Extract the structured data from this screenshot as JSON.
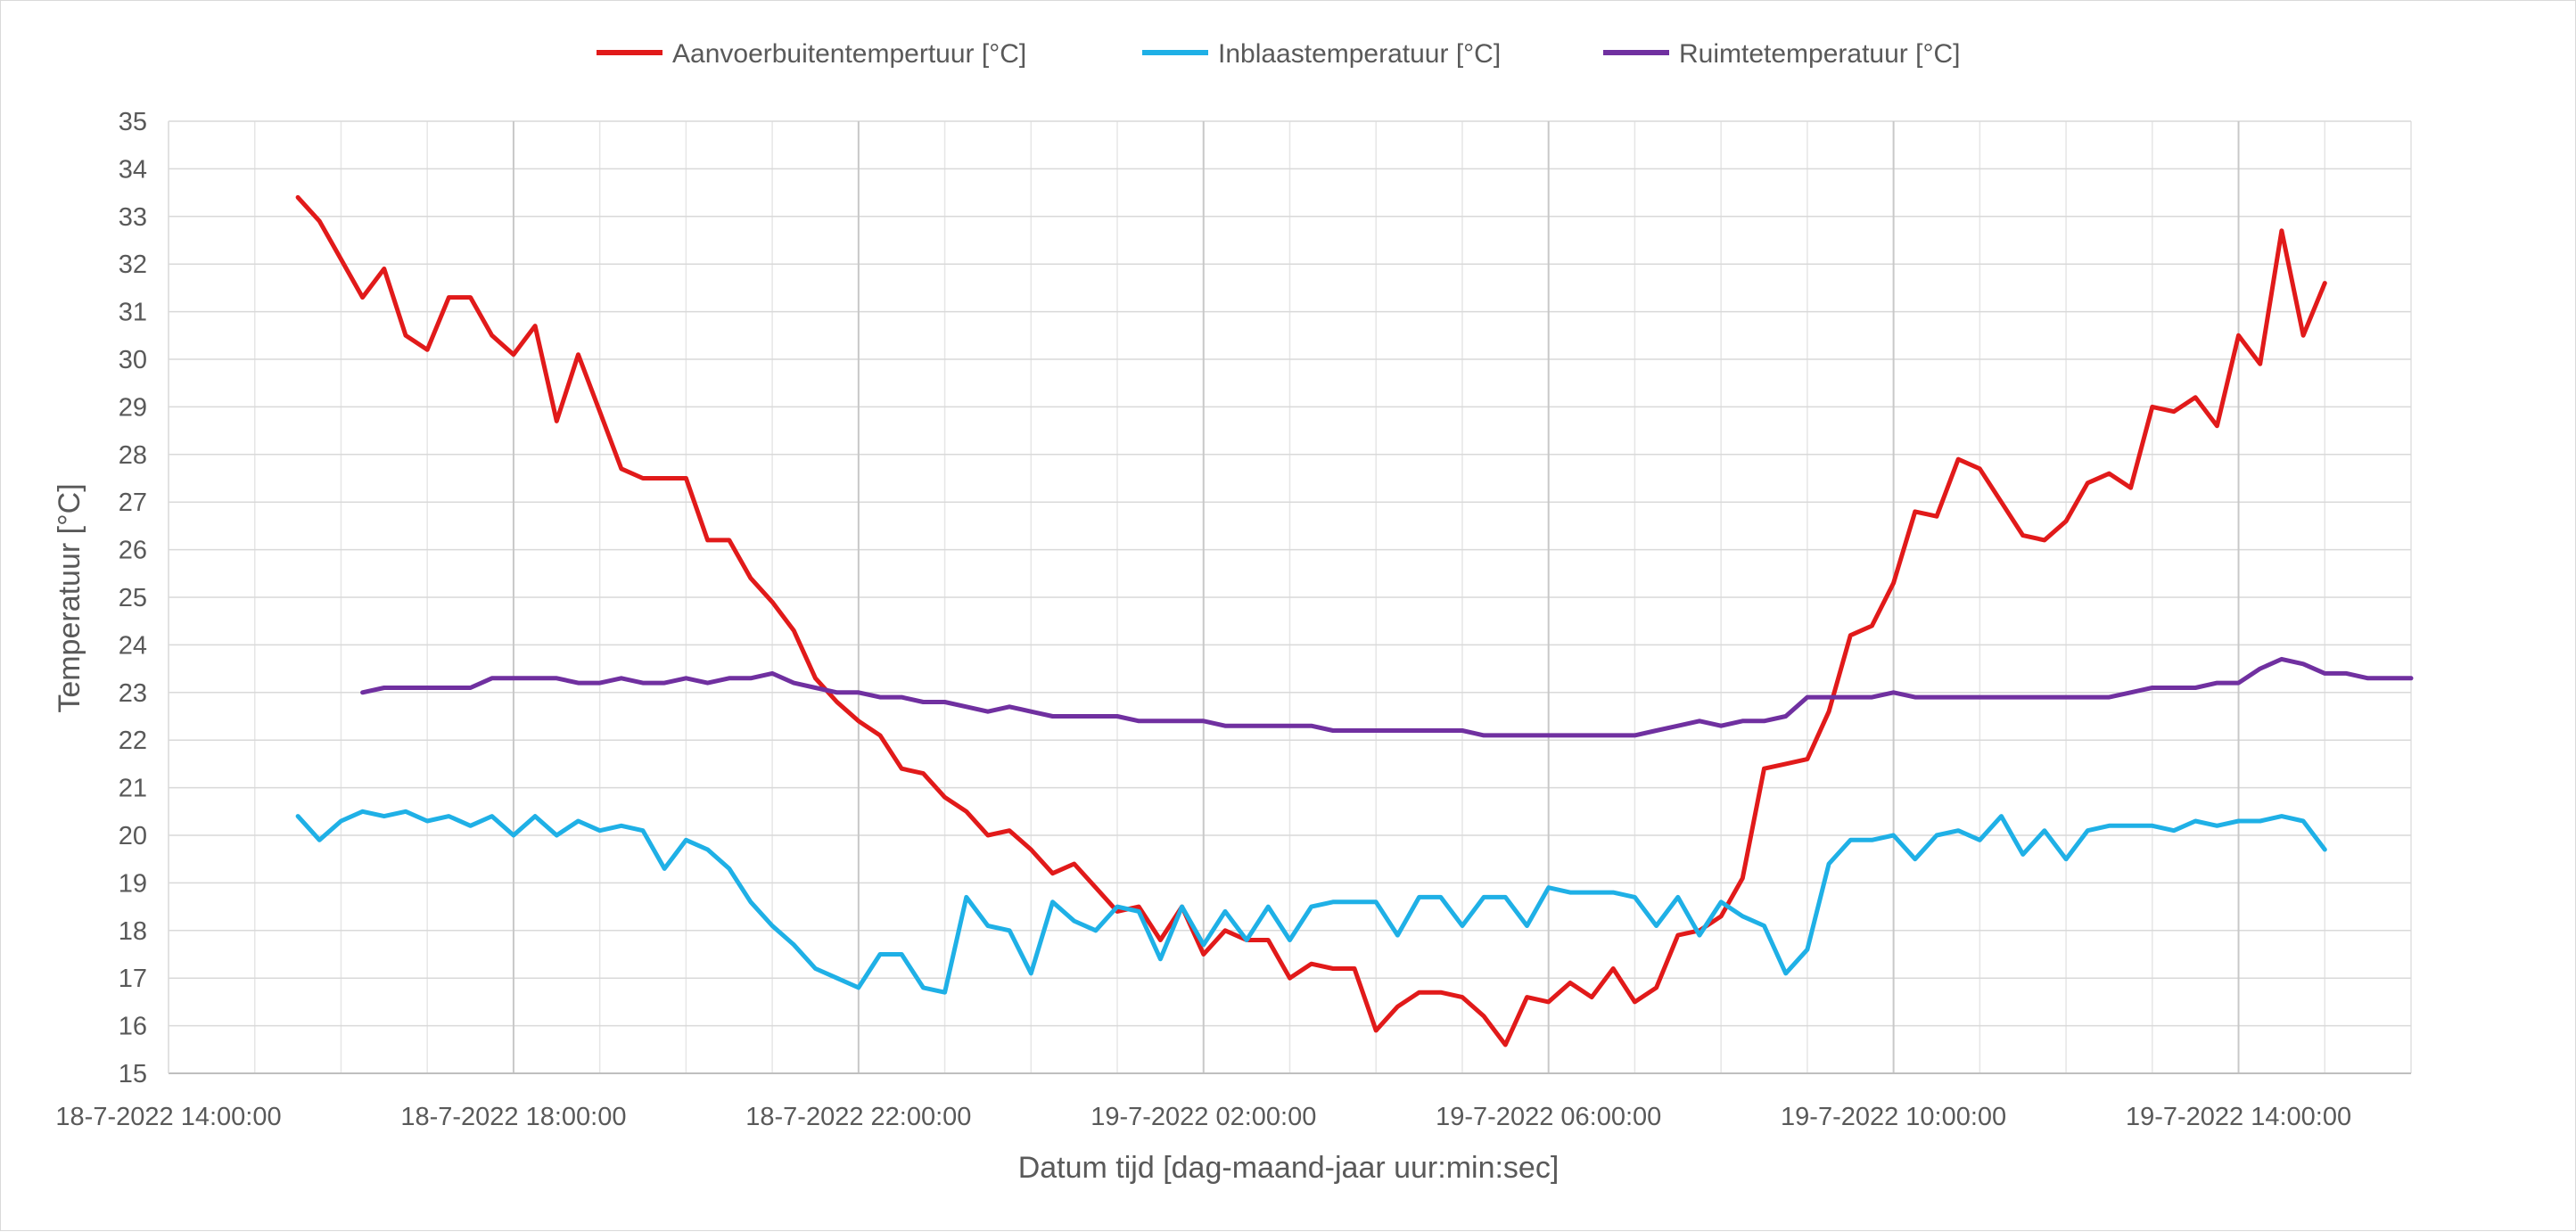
{
  "chart_data": {
    "type": "line",
    "title": "",
    "xlabel": "Datum tijd [dag-maand-jaar uur:min:sec]",
    "ylabel": "Temperatuur [°C]",
    "ylim": [
      15,
      35
    ],
    "yticks": [
      15,
      16,
      17,
      18,
      19,
      20,
      21,
      22,
      23,
      24,
      25,
      26,
      27,
      28,
      29,
      30,
      31,
      32,
      33,
      34,
      35
    ],
    "x_axis": {
      "type": "datetime",
      "start": "18-7-2022 14:00:00",
      "end": "19-7-2022 16:00:00",
      "major_tick_labels": [
        "18-7-2022 14:00:00",
        "18-7-2022 18:00:00",
        "18-7-2022 22:00:00",
        "19-7-2022 02:00:00",
        "19-7-2022 06:00:00",
        "19-7-2022 10:00:00",
        "19-7-2022 14:00:00"
      ],
      "minor_grid_minutes": 60,
      "major_grid_minutes": 240
    },
    "grid": true,
    "legend": "top-center",
    "series": [
      {
        "name": "Aanvoerbuitentempertuur [°C]",
        "color": "#e11a1a",
        "x": [
          "18-7-2022 15:30:00",
          "18-7-2022 15:45:00",
          "18-7-2022 16:00:00",
          "18-7-2022 16:15:00",
          "18-7-2022 16:30:00",
          "18-7-2022 16:45:00",
          "18-7-2022 17:00:00",
          "18-7-2022 17:15:00",
          "18-7-2022 17:30:00",
          "18-7-2022 17:45:00",
          "18-7-2022 18:00:00",
          "18-7-2022 18:15:00",
          "18-7-2022 18:30:00",
          "18-7-2022 18:45:00",
          "18-7-2022 19:00:00",
          "18-7-2022 19:15:00",
          "18-7-2022 19:30:00",
          "18-7-2022 19:45:00",
          "18-7-2022 20:00:00",
          "18-7-2022 20:15:00",
          "18-7-2022 20:30:00",
          "18-7-2022 20:45:00",
          "18-7-2022 21:00:00",
          "18-7-2022 21:15:00",
          "18-7-2022 21:30:00",
          "18-7-2022 21:45:00",
          "18-7-2022 22:00:00",
          "18-7-2022 22:15:00",
          "18-7-2022 22:30:00",
          "18-7-2022 22:45:00",
          "18-7-2022 23:00:00",
          "18-7-2022 23:15:00",
          "18-7-2022 23:30:00",
          "18-7-2022 23:45:00",
          "19-7-2022 00:00:00",
          "19-7-2022 00:15:00",
          "19-7-2022 00:30:00",
          "19-7-2022 00:45:00",
          "19-7-2022 01:00:00",
          "19-7-2022 01:15:00",
          "19-7-2022 01:30:00",
          "19-7-2022 01:45:00",
          "19-7-2022 02:00:00",
          "19-7-2022 02:15:00",
          "19-7-2022 02:30:00",
          "19-7-2022 02:45:00",
          "19-7-2022 03:00:00",
          "19-7-2022 03:15:00",
          "19-7-2022 03:30:00",
          "19-7-2022 03:45:00",
          "19-7-2022 04:00:00",
          "19-7-2022 04:15:00",
          "19-7-2022 04:30:00",
          "19-7-2022 04:45:00",
          "19-7-2022 05:00:00",
          "19-7-2022 05:15:00",
          "19-7-2022 05:30:00",
          "19-7-2022 05:45:00",
          "19-7-2022 06:00:00",
          "19-7-2022 06:15:00",
          "19-7-2022 06:30:00",
          "19-7-2022 06:45:00",
          "19-7-2022 07:00:00",
          "19-7-2022 07:15:00",
          "19-7-2022 07:30:00",
          "19-7-2022 07:45:00",
          "19-7-2022 08:00:00",
          "19-7-2022 08:15:00",
          "19-7-2022 08:30:00",
          "19-7-2022 08:45:00",
          "19-7-2022 09:00:00",
          "19-7-2022 09:15:00",
          "19-7-2022 09:30:00",
          "19-7-2022 09:45:00",
          "19-7-2022 10:00:00",
          "19-7-2022 10:15:00",
          "19-7-2022 10:30:00",
          "19-7-2022 10:45:00",
          "19-7-2022 11:00:00",
          "19-7-2022 11:15:00",
          "19-7-2022 11:30:00",
          "19-7-2022 11:45:00",
          "19-7-2022 12:00:00",
          "19-7-2022 12:15:00",
          "19-7-2022 12:30:00",
          "19-7-2022 12:45:00",
          "19-7-2022 13:00:00",
          "19-7-2022 13:15:00",
          "19-7-2022 13:30:00",
          "19-7-2022 13:45:00",
          "19-7-2022 14:00:00",
          "19-7-2022 14:15:00",
          "19-7-2022 14:30:00",
          "19-7-2022 14:45:00",
          "19-7-2022 15:00:00"
        ],
        "values": [
          33.4,
          32.9,
          32.1,
          31.3,
          31.9,
          30.5,
          30.2,
          31.3,
          31.3,
          30.5,
          30.1,
          30.7,
          28.7,
          30.1,
          28.9,
          27.7,
          27.5,
          27.5,
          27.5,
          26.2,
          26.2,
          25.4,
          24.9,
          24.3,
          23.3,
          22.8,
          22.4,
          22.1,
          21.4,
          21.3,
          20.8,
          20.5,
          20.0,
          20.1,
          19.7,
          19.2,
          19.4,
          18.9,
          18.4,
          18.5,
          17.8,
          18.5,
          17.5,
          18.0,
          17.8,
          17.8,
          17.0,
          17.3,
          17.2,
          17.2,
          15.9,
          16.4,
          16.7,
          16.7,
          16.6,
          16.2,
          15.6,
          16.6,
          16.5,
          16.9,
          16.6,
          17.2,
          16.5,
          16.8,
          17.9,
          18.0,
          18.3,
          19.1,
          21.4,
          21.5,
          21.6,
          22.6,
          24.2,
          24.4,
          25.3,
          26.8,
          26.7,
          27.9,
          27.7,
          27.0,
          26.3,
          26.2,
          26.6,
          27.4,
          27.6,
          27.3,
          29.0,
          28.9,
          29.2,
          28.6,
          30.5,
          29.9,
          32.7,
          30.5,
          31.6
        ]
      },
      {
        "name": "Inblaastemperatuur [°C]",
        "color": "#1fb0e6",
        "x": [
          "18-7-2022 15:30:00",
          "18-7-2022 15:45:00",
          "18-7-2022 16:00:00",
          "18-7-2022 16:15:00",
          "18-7-2022 16:30:00",
          "18-7-2022 16:45:00",
          "18-7-2022 17:00:00",
          "18-7-2022 17:15:00",
          "18-7-2022 17:30:00",
          "18-7-2022 17:45:00",
          "18-7-2022 18:00:00",
          "18-7-2022 18:15:00",
          "18-7-2022 18:30:00",
          "18-7-2022 18:45:00",
          "18-7-2022 19:00:00",
          "18-7-2022 19:15:00",
          "18-7-2022 19:30:00",
          "18-7-2022 19:45:00",
          "18-7-2022 20:00:00",
          "18-7-2022 20:15:00",
          "18-7-2022 20:30:00",
          "18-7-2022 20:45:00",
          "18-7-2022 21:00:00",
          "18-7-2022 21:15:00",
          "18-7-2022 21:30:00",
          "18-7-2022 21:45:00",
          "18-7-2022 22:00:00",
          "18-7-2022 22:15:00",
          "18-7-2022 22:30:00",
          "18-7-2022 22:45:00",
          "18-7-2022 23:00:00",
          "18-7-2022 23:15:00",
          "18-7-2022 23:30:00",
          "18-7-2022 23:45:00",
          "19-7-2022 00:00:00",
          "19-7-2022 00:15:00",
          "19-7-2022 00:30:00",
          "19-7-2022 00:45:00",
          "19-7-2022 01:00:00",
          "19-7-2022 01:15:00",
          "19-7-2022 01:30:00",
          "19-7-2022 01:45:00",
          "19-7-2022 02:00:00",
          "19-7-2022 02:15:00",
          "19-7-2022 02:30:00",
          "19-7-2022 02:45:00",
          "19-7-2022 03:00:00",
          "19-7-2022 03:15:00",
          "19-7-2022 03:30:00",
          "19-7-2022 03:45:00",
          "19-7-2022 04:00:00",
          "19-7-2022 04:15:00",
          "19-7-2022 04:30:00",
          "19-7-2022 04:45:00",
          "19-7-2022 05:00:00",
          "19-7-2022 05:15:00",
          "19-7-2022 05:30:00",
          "19-7-2022 05:45:00",
          "19-7-2022 06:00:00",
          "19-7-2022 06:15:00",
          "19-7-2022 06:30:00",
          "19-7-2022 06:45:00",
          "19-7-2022 07:00:00",
          "19-7-2022 07:15:00",
          "19-7-2022 07:30:00",
          "19-7-2022 07:45:00",
          "19-7-2022 08:00:00",
          "19-7-2022 08:15:00",
          "19-7-2022 08:30:00",
          "19-7-2022 08:45:00",
          "19-7-2022 09:00:00",
          "19-7-2022 09:15:00",
          "19-7-2022 09:30:00",
          "19-7-2022 09:45:00",
          "19-7-2022 10:00:00",
          "19-7-2022 10:15:00",
          "19-7-2022 10:30:00",
          "19-7-2022 10:45:00",
          "19-7-2022 11:00:00",
          "19-7-2022 11:15:00",
          "19-7-2022 11:30:00",
          "19-7-2022 11:45:00",
          "19-7-2022 12:00:00",
          "19-7-2022 12:15:00",
          "19-7-2022 12:30:00",
          "19-7-2022 12:45:00",
          "19-7-2022 13:00:00",
          "19-7-2022 13:15:00",
          "19-7-2022 13:30:00",
          "19-7-2022 13:45:00",
          "19-7-2022 14:00:00",
          "19-7-2022 14:15:00",
          "19-7-2022 14:30:00",
          "19-7-2022 14:45:00",
          "19-7-2022 15:00:00"
        ],
        "values": [
          20.4,
          19.9,
          20.3,
          20.5,
          20.4,
          20.5,
          20.3,
          20.4,
          20.2,
          20.4,
          20.0,
          20.4,
          20.0,
          20.3,
          20.1,
          20.2,
          20.1,
          19.3,
          19.9,
          19.7,
          19.3,
          18.6,
          18.1,
          17.7,
          17.2,
          17.0,
          16.8,
          17.5,
          17.5,
          16.8,
          16.7,
          18.7,
          18.1,
          18.0,
          17.1,
          18.6,
          18.2,
          18.0,
          18.5,
          18.4,
          17.4,
          18.5,
          17.7,
          18.4,
          17.8,
          18.5,
          17.8,
          18.5,
          18.6,
          18.6,
          18.6,
          17.9,
          18.7,
          18.7,
          18.1,
          18.7,
          18.7,
          18.1,
          18.9,
          18.8,
          18.8,
          18.8,
          18.7,
          18.1,
          18.7,
          17.9,
          18.6,
          18.3,
          18.1,
          17.1,
          17.6,
          19.4,
          19.9,
          19.9,
          20.0,
          19.5,
          20.0,
          20.1,
          19.9,
          20.4,
          19.6,
          20.1,
          19.5,
          20.1,
          20.2,
          20.2,
          20.2,
          20.1,
          20.3,
          20.2,
          20.3,
          20.3,
          20.4,
          20.3,
          19.7
        ]
      },
      {
        "name": "Ruimtetemperatuur [°C]",
        "color": "#7030a0",
        "x": [
          "18-7-2022 16:15:00",
          "18-7-2022 16:30:00",
          "18-7-2022 16:45:00",
          "18-7-2022 17:00:00",
          "18-7-2022 17:15:00",
          "18-7-2022 17:30:00",
          "18-7-2022 17:45:00",
          "18-7-2022 18:00:00",
          "18-7-2022 18:15:00",
          "18-7-2022 18:30:00",
          "18-7-2022 18:45:00",
          "18-7-2022 19:00:00",
          "18-7-2022 19:15:00",
          "18-7-2022 19:30:00",
          "18-7-2022 19:45:00",
          "18-7-2022 20:00:00",
          "18-7-2022 20:15:00",
          "18-7-2022 20:30:00",
          "18-7-2022 20:45:00",
          "18-7-2022 21:00:00",
          "18-7-2022 21:15:00",
          "18-7-2022 21:30:00",
          "18-7-2022 21:45:00",
          "18-7-2022 22:00:00",
          "18-7-2022 22:15:00",
          "18-7-2022 22:30:00",
          "18-7-2022 22:45:00",
          "18-7-2022 23:00:00",
          "18-7-2022 23:15:00",
          "18-7-2022 23:30:00",
          "18-7-2022 23:45:00",
          "19-7-2022 00:00:00",
          "19-7-2022 00:15:00",
          "19-7-2022 00:30:00",
          "19-7-2022 00:45:00",
          "19-7-2022 01:00:00",
          "19-7-2022 01:15:00",
          "19-7-2022 01:30:00",
          "19-7-2022 01:45:00",
          "19-7-2022 02:00:00",
          "19-7-2022 02:15:00",
          "19-7-2022 02:30:00",
          "19-7-2022 02:45:00",
          "19-7-2022 03:00:00",
          "19-7-2022 03:15:00",
          "19-7-2022 03:30:00",
          "19-7-2022 03:45:00",
          "19-7-2022 04:00:00",
          "19-7-2022 04:15:00",
          "19-7-2022 04:30:00",
          "19-7-2022 04:45:00",
          "19-7-2022 05:00:00",
          "19-7-2022 05:15:00",
          "19-7-2022 05:30:00",
          "19-7-2022 05:45:00",
          "19-7-2022 06:00:00",
          "19-7-2022 06:15:00",
          "19-7-2022 06:30:00",
          "19-7-2022 06:45:00",
          "19-7-2022 07:00:00",
          "19-7-2022 07:15:00",
          "19-7-2022 07:30:00",
          "19-7-2022 07:45:00",
          "19-7-2022 08:00:00",
          "19-7-2022 08:15:00",
          "19-7-2022 08:30:00",
          "19-7-2022 08:45:00",
          "19-7-2022 09:00:00",
          "19-7-2022 09:15:00",
          "19-7-2022 09:30:00",
          "19-7-2022 09:45:00",
          "19-7-2022 10:00:00",
          "19-7-2022 10:15:00",
          "19-7-2022 10:30:00",
          "19-7-2022 10:45:00",
          "19-7-2022 11:00:00",
          "19-7-2022 11:15:00",
          "19-7-2022 11:30:00",
          "19-7-2022 11:45:00",
          "19-7-2022 12:00:00",
          "19-7-2022 12:15:00",
          "19-7-2022 12:30:00",
          "19-7-2022 12:45:00",
          "19-7-2022 13:00:00",
          "19-7-2022 13:15:00",
          "19-7-2022 13:30:00",
          "19-7-2022 13:45:00",
          "19-7-2022 14:00:00",
          "19-7-2022 14:15:00",
          "19-7-2022 14:30:00",
          "19-7-2022 14:45:00",
          "19-7-2022 15:00:00",
          "19-7-2022 15:15:00",
          "19-7-2022 15:30:00",
          "19-7-2022 15:45:00",
          "19-7-2022 16:00:00"
        ],
        "values": [
          23.0,
          23.1,
          23.1,
          23.1,
          23.1,
          23.1,
          23.3,
          23.3,
          23.3,
          23.3,
          23.2,
          23.2,
          23.3,
          23.2,
          23.2,
          23.3,
          23.2,
          23.3,
          23.3,
          23.4,
          23.2,
          23.1,
          23.0,
          23.0,
          22.9,
          22.9,
          22.8,
          22.8,
          22.7,
          22.6,
          22.7,
          22.6,
          22.5,
          22.5,
          22.5,
          22.5,
          22.4,
          22.4,
          22.4,
          22.4,
          22.3,
          22.3,
          22.3,
          22.3,
          22.3,
          22.2,
          22.2,
          22.2,
          22.2,
          22.2,
          22.2,
          22.2,
          22.1,
          22.1,
          22.1,
          22.1,
          22.1,
          22.1,
          22.1,
          22.1,
          22.2,
          22.3,
          22.4,
          22.3,
          22.4,
          22.4,
          22.5,
          22.9,
          22.9,
          22.9,
          22.9,
          23.0,
          22.9,
          22.9,
          22.9,
          22.9,
          22.9,
          22.9,
          22.9,
          22.9,
          22.9,
          22.9,
          23.0,
          23.1,
          23.1,
          23.1,
          23.2,
          23.2,
          23.5,
          23.7,
          23.6,
          23.4,
          23.4,
          23.3,
          23.3,
          23.3
        ]
      }
    ]
  }
}
